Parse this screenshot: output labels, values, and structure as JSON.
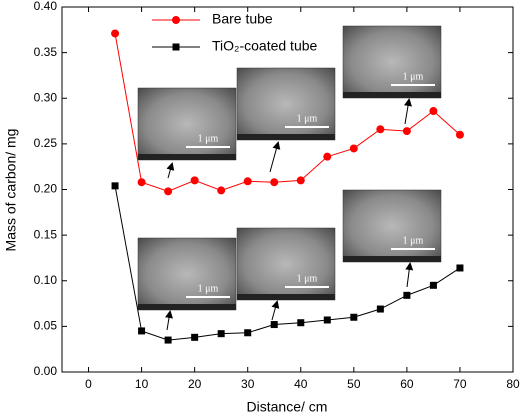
{
  "chart_data": {
    "type": "line",
    "x_label": "Distance/ cm",
    "y_label": "Mass of carbon/ mg",
    "xlim": [
      -5,
      80
    ],
    "xticks": [
      0,
      10,
      20,
      30,
      40,
      50,
      60,
      70,
      80
    ],
    "ylim": [
      0,
      0.4
    ],
    "yticks": [
      {
        "value": 0,
        "label": "0.00"
      },
      {
        "value": 0.05,
        "label": "0.05"
      },
      {
        "value": 0.1,
        "label": "0.10"
      },
      {
        "value": 0.15,
        "label": "0.15"
      },
      {
        "value": 0.2,
        "label": "0.20"
      },
      {
        "value": 0.25,
        "label": "0.25"
      },
      {
        "value": 0.3,
        "label": "0.30"
      },
      {
        "value": 0.35,
        "label": "0.35"
      },
      {
        "value": 0.4,
        "label": "0.40"
      }
    ],
    "grid": false,
    "legend": "upper left",
    "x": [
      5,
      10,
      15,
      20,
      25,
      30,
      35,
      40,
      45,
      50,
      55,
      60,
      65,
      70
    ],
    "series": [
      {
        "name": "Bare tube",
        "color": "#ff0000",
        "marker": "circle",
        "values": [
          0.371,
          0.208,
          0.198,
          0.21,
          0.199,
          0.209,
          0.208,
          0.21,
          0.236,
          0.245,
          0.266,
          0.264,
          0.286,
          0.26
        ]
      },
      {
        "name": "TiO₂-coated tube",
        "color": "#000000",
        "marker": "square",
        "values": [
          0.204,
          0.045,
          0.035,
          0.038,
          0.042,
          0.043,
          0.052,
          0.054,
          0.057,
          0.06,
          0.069,
          0.084,
          0.095,
          0.114
        ]
      }
    ],
    "annotations": [
      "1 μm",
      "1 μm",
      "1 μm",
      "1 μm",
      "1 μm",
      "1 μm"
    ]
  }
}
